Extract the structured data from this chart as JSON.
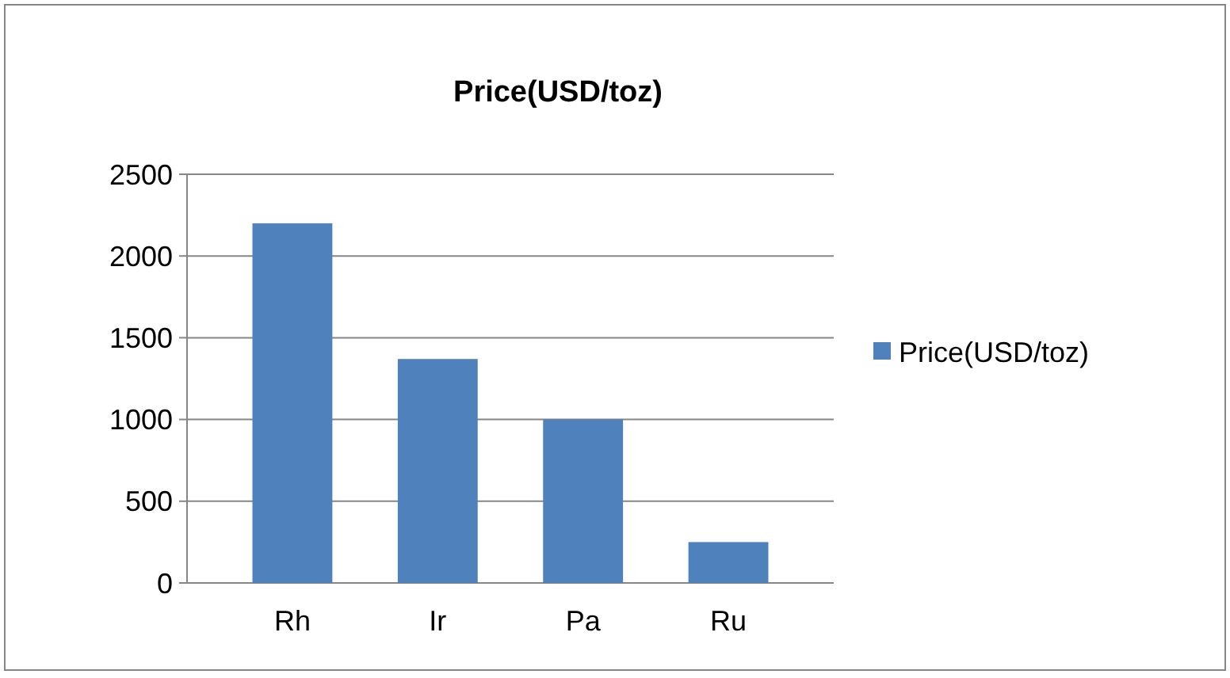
{
  "chart_data": {
    "type": "bar",
    "title": "Price(USD/toz)",
    "categories": [
      "Rh",
      "Ir",
      "Pa",
      "Ru"
    ],
    "series": [
      {
        "name": "Price(USD/toz)",
        "color": "#4f81bd",
        "values": [
          2200,
          1370,
          1000,
          250
        ]
      }
    ],
    "ylim": [
      0,
      2500
    ],
    "yticks": [
      0,
      500,
      1000,
      1500,
      2000,
      2500
    ],
    "grid": "y",
    "legend": "right"
  }
}
